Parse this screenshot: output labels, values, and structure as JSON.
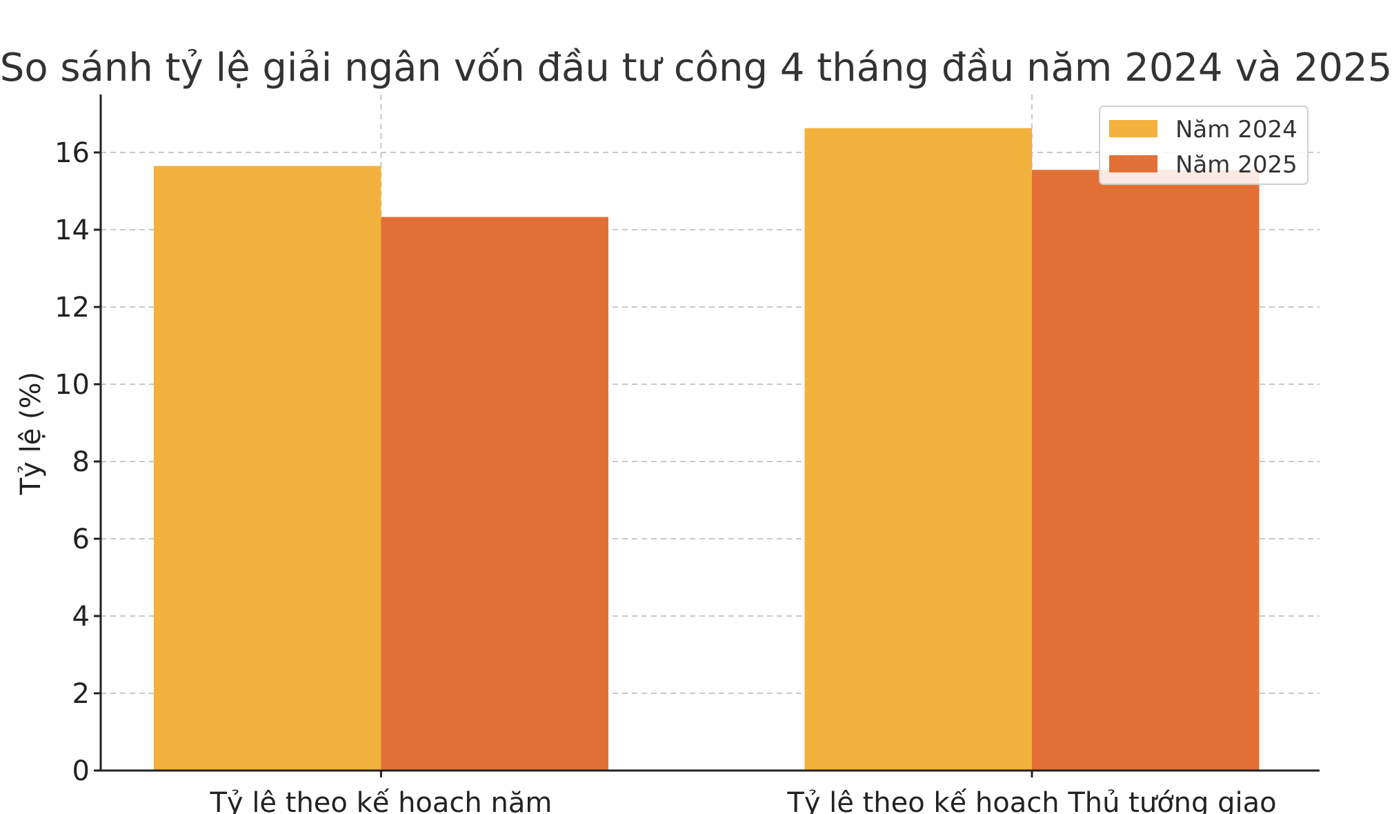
{
  "chart_data": {
    "type": "bar",
    "title": "So sánh tỷ lệ giải ngân vốn đầu tư công 4 tháng đầu năm 2024 và 2025",
    "xlabel": "",
    "ylabel": "Tỷ lệ (%)",
    "categories": [
      "Tỷ lệ theo kế hoạch năm",
      "Tỷ lệ theo kế hoạch Thủ tướng giao"
    ],
    "series": [
      {
        "name": "Năm 2024",
        "color": "#F3B13E",
        "values": [
          15.65,
          16.63
        ]
      },
      {
        "name": "Năm 2025",
        "color": "#E27036",
        "values": [
          14.33,
          15.55
        ]
      }
    ],
    "ylim": [
      0,
      17.5
    ],
    "yticks": [
      0,
      2,
      4,
      6,
      8,
      10,
      12,
      14,
      16
    ],
    "grid": true,
    "legend_position": "top-right"
  }
}
